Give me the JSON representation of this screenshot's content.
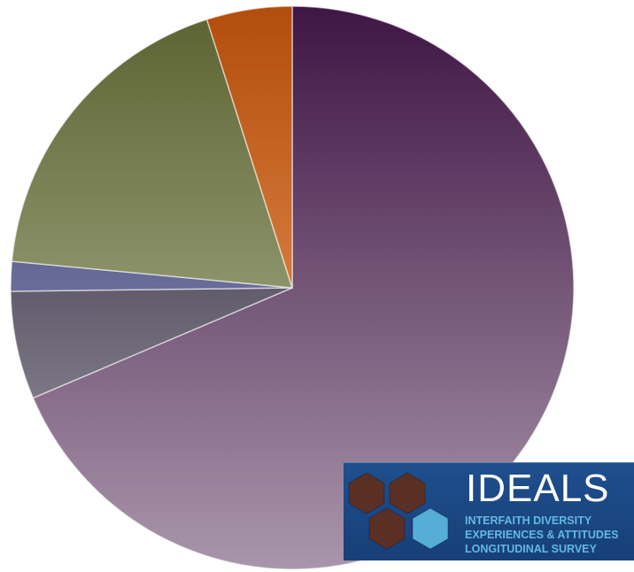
{
  "chart_data": {
    "type": "pie",
    "title": "",
    "start_angle_deg": 0,
    "direction": "clockwise",
    "slices": [
      {
        "value": 68.6,
        "color_top": "#3f1544",
        "color_bottom": "#a996ab"
      },
      {
        "value": 6.2,
        "color_top": "#1c1626",
        "color_bottom": "#a6a2ae"
      },
      {
        "value": 1.7,
        "color_top": "#363a6b",
        "color_bottom": "#9c9fc6"
      },
      {
        "value": 18.6,
        "color_top": "#5a6232",
        "color_bottom": "#c1c4a0"
      },
      {
        "value": 4.9,
        "color_top": "#b24d0c",
        "color_bottom": "#f7a86c"
      }
    ]
  },
  "logo": {
    "title": "IDEALS",
    "subtitle_lines": [
      "INTERFAITH DIVERSITY",
      "EXPERIENCES  & ATTITUDES",
      "LONGITUDINAL SURVEY"
    ],
    "hexagon_colors": [
      "#5a2f24",
      "#5a2f24",
      "#5a2f24",
      "#56aed6"
    ]
  }
}
